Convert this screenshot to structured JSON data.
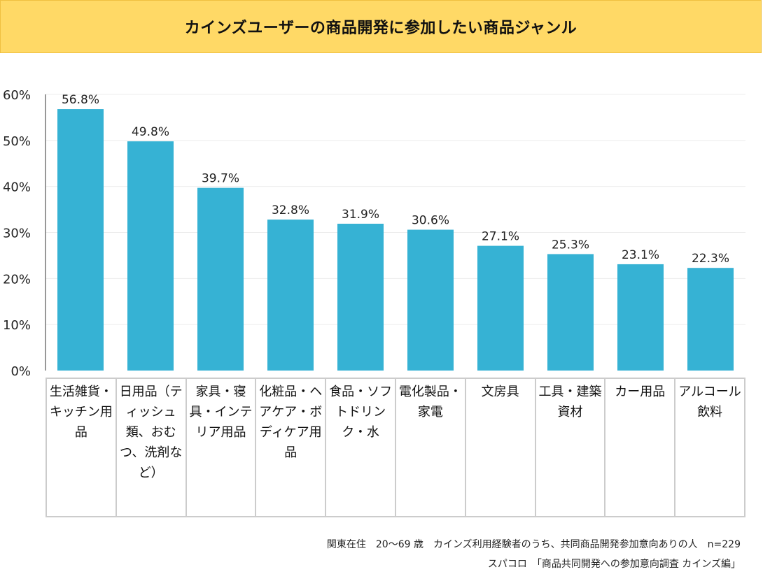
{
  "chart_data": {
    "type": "bar",
    "title": "カインズユーザーの商品開発に参加したい商品ジャンル",
    "categories": [
      "生活雑貨・キッチン用品",
      "日用品（ティッシュ類、おむつ、洗剤など）",
      "家具・寝具・インテリア用品",
      "化粧品・ヘアケア・ボディケア用品",
      "食品・ソフトドリンク・水",
      "電化製品・家電",
      "文房具",
      "工具・建築資材",
      "カー用品",
      "アルコール飲料"
    ],
    "values": [
      56.8,
      49.8,
      39.7,
      32.8,
      31.9,
      30.6,
      27.1,
      25.3,
      23.1,
      22.3
    ],
    "value_labels": [
      "56.8%",
      "49.8%",
      "39.7%",
      "32.8%",
      "31.9%",
      "30.6%",
      "27.1%",
      "25.3%",
      "23.1%",
      "22.3%"
    ],
    "ylim": [
      0,
      60
    ],
    "yticks": [
      0,
      10,
      20,
      30,
      40,
      50,
      60
    ],
    "ytick_labels": [
      "0%",
      "10%",
      "20%",
      "30%",
      "40%",
      "50%",
      "60%"
    ],
    "xlabel": "",
    "ylabel": "",
    "bar_color": "#36b2d4",
    "grid": true
  },
  "footnote": {
    "line1": "関東在住　20〜69 歳　カインズ利用経験者のうち、共同商品開発参加意向ありの人　n=229",
    "line2": "スパコロ　「商品共同開発への参加意向調査 カインズ編」"
  },
  "colors": {
    "title_background": "#ffd966",
    "bar": "#36b2d4"
  }
}
